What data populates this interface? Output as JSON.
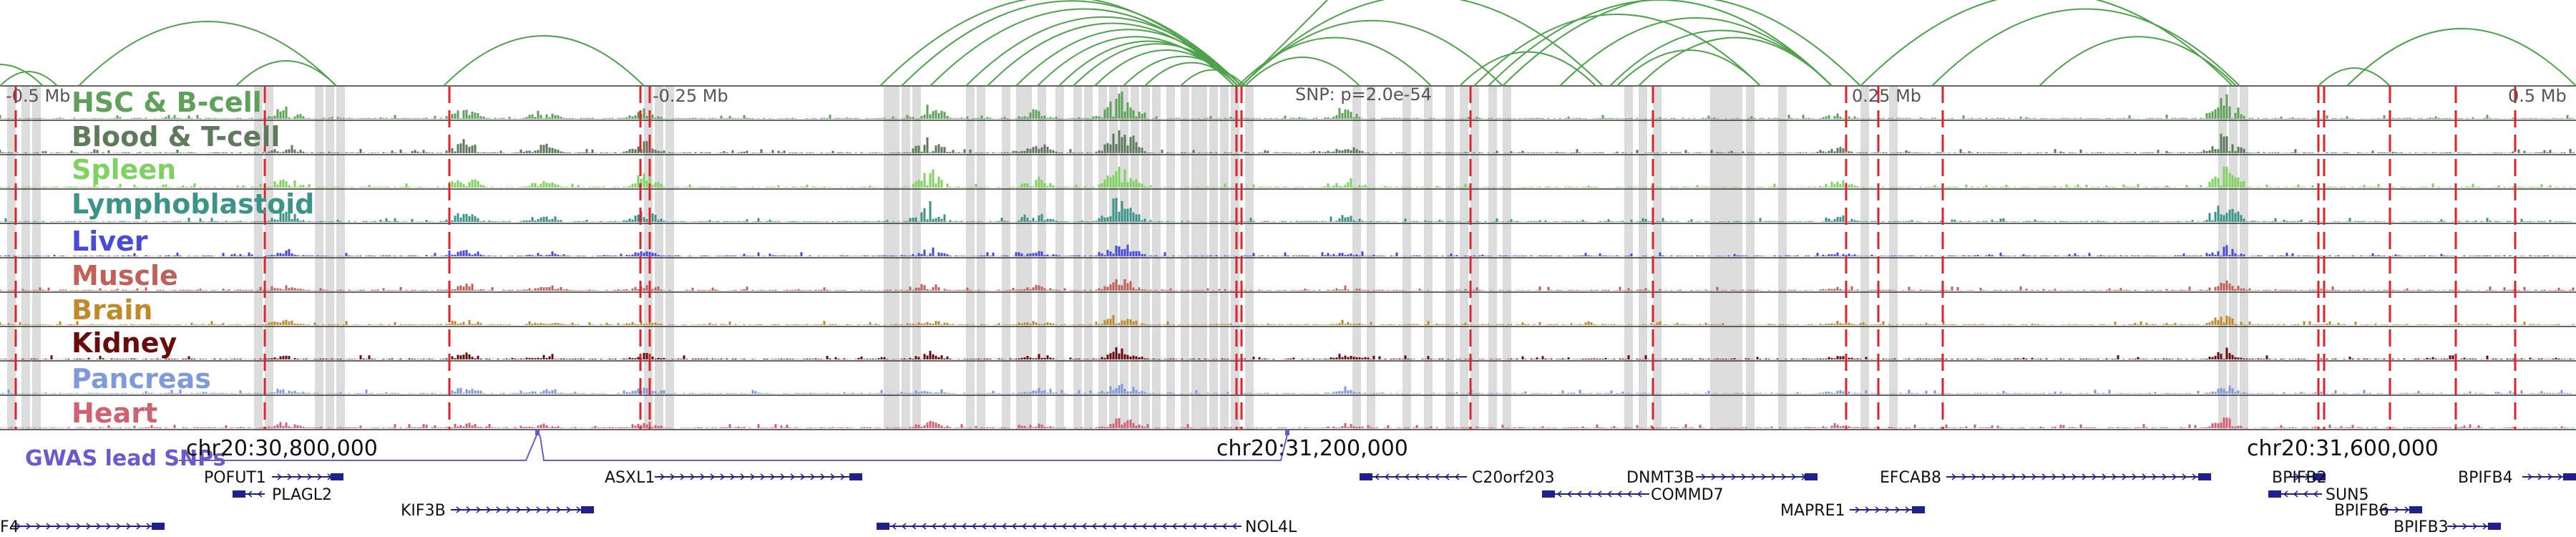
{
  "colors": {
    "arcs": "#4ea24b",
    "track_border": "#333333",
    "highlight_band": "#dcdcdc",
    "red_marker": "#e0202a",
    "axis_text": "#555555",
    "gwas_label": "#6a5acd",
    "gwas_line": "#6a5acd",
    "gene": "#1f1f8f",
    "gene_label": "#111111",
    "coord_label": "#111111"
  },
  "scale_labels": [
    "-0.5 Mb",
    "-0.25 Mb",
    "SNP: p=2.0e-54",
    "0.25 Mb",
    "0.5 Mb"
  ],
  "tracks": [
    {
      "label": "HSC & B-cell",
      "color": "#5fa05a"
    },
    {
      "label": "Blood & T-cell",
      "color": "#5e7a5b"
    },
    {
      "label": "Spleen",
      "color": "#7fd160"
    },
    {
      "label": "Lymphoblastoid",
      "color": "#3b9487"
    },
    {
      "label": "Liver",
      "color": "#4a4ad9"
    },
    {
      "label": "Muscle",
      "color": "#c06058"
    },
    {
      "label": "Brain",
      "color": "#c08a2a"
    },
    {
      "label": "Kidney",
      "color": "#6b0c0c"
    },
    {
      "label": "Pancreas",
      "color": "#7f9ad9"
    },
    {
      "label": "Heart",
      "color": "#d06072"
    }
  ],
  "gwas": {
    "label": "GWAS lead SNPs"
  },
  "coordinates": [
    "chr20:30,800,000",
    "chr20:31,200,000",
    "chr20:31,600,000"
  ],
  "genes": [
    {
      "name": "POFUT1"
    },
    {
      "name": "PLAGL2"
    },
    {
      "name": "KIF3B"
    },
    {
      "name": "ASXL1"
    },
    {
      "name": "NOL4L"
    },
    {
      "name": "C20orf203"
    },
    {
      "name": "DNMT3B"
    },
    {
      "name": "COMMD7"
    },
    {
      "name": "MAPRE1"
    },
    {
      "name": "EFCAB8"
    },
    {
      "name": "BPIFB2"
    },
    {
      "name": "SUN5"
    },
    {
      "name": "BPIFB6"
    },
    {
      "name": "BPIFB3"
    },
    {
      "name": "BPIFB4"
    },
    {
      "name": "F4"
    }
  ]
}
